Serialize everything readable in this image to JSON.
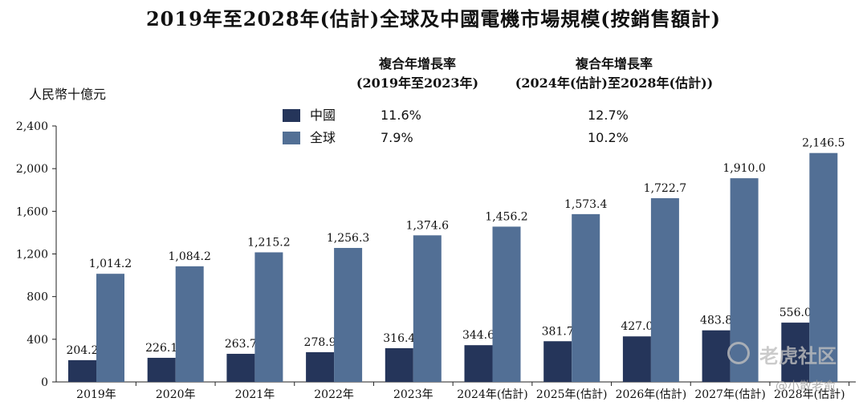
{
  "chart_data": {
    "type": "bar",
    "title": "2019年至2028年(估計)全球及中國電機市場規模(按銷售額計)",
    "ylabel": "人民幣十億元",
    "xlabel": "",
    "ylim": [
      0,
      2400
    ],
    "yticks": [
      "0",
      "400",
      "800",
      "1,200",
      "1,600",
      "2,000",
      "2,400"
    ],
    "ytick_values": [
      0,
      400,
      800,
      1200,
      1600,
      2000,
      2400
    ],
    "categories": [
      "2019年",
      "2020年",
      "2021年",
      "2022年",
      "2023年",
      "2024年(估計)",
      "2025年(估計)",
      "2026年(估計)",
      "2027年(估計)",
      "2028年(估計)"
    ],
    "series": [
      {
        "name": "中國",
        "color": "#25355a",
        "values": [
          204.2,
          226.1,
          263.7,
          278.9,
          316.4,
          344.6,
          381.7,
          427.0,
          483.8,
          556.0
        ],
        "labels": [
          "204.2",
          "226.1",
          "263.7",
          "278.9",
          "316.4",
          "344.6",
          "381.7",
          "427.0",
          "483.8",
          "556.0"
        ]
      },
      {
        "name": "全球",
        "color": "#526f95",
        "values": [
          1014.2,
          1084.2,
          1215.2,
          1256.3,
          1374.6,
          1456.2,
          1573.4,
          1722.7,
          1910.0,
          2146.5
        ],
        "labels": [
          "1,014.2",
          "1,084.2",
          "1,215.2",
          "1,256.3",
          "1,374.6",
          "1,456.2",
          "1,573.4",
          "1,722.7",
          "1,910.0",
          "2,146.5"
        ]
      }
    ],
    "grid": false,
    "legend_position": "top-left"
  },
  "cagr": {
    "period1_line1": "複合年增長率",
    "period1_line2": "(2019年至2023年)",
    "period2_line1": "複合年增長率",
    "period2_line2": "(2024年(估計)至2028年(估計))",
    "china_p1": "11.6%",
    "china_p2": "12.7%",
    "global_p1": "7.9%",
    "global_p2": "10.2%"
  },
  "watermark": {
    "brand": "老虎社区",
    "handle": "@小散老俞"
  }
}
